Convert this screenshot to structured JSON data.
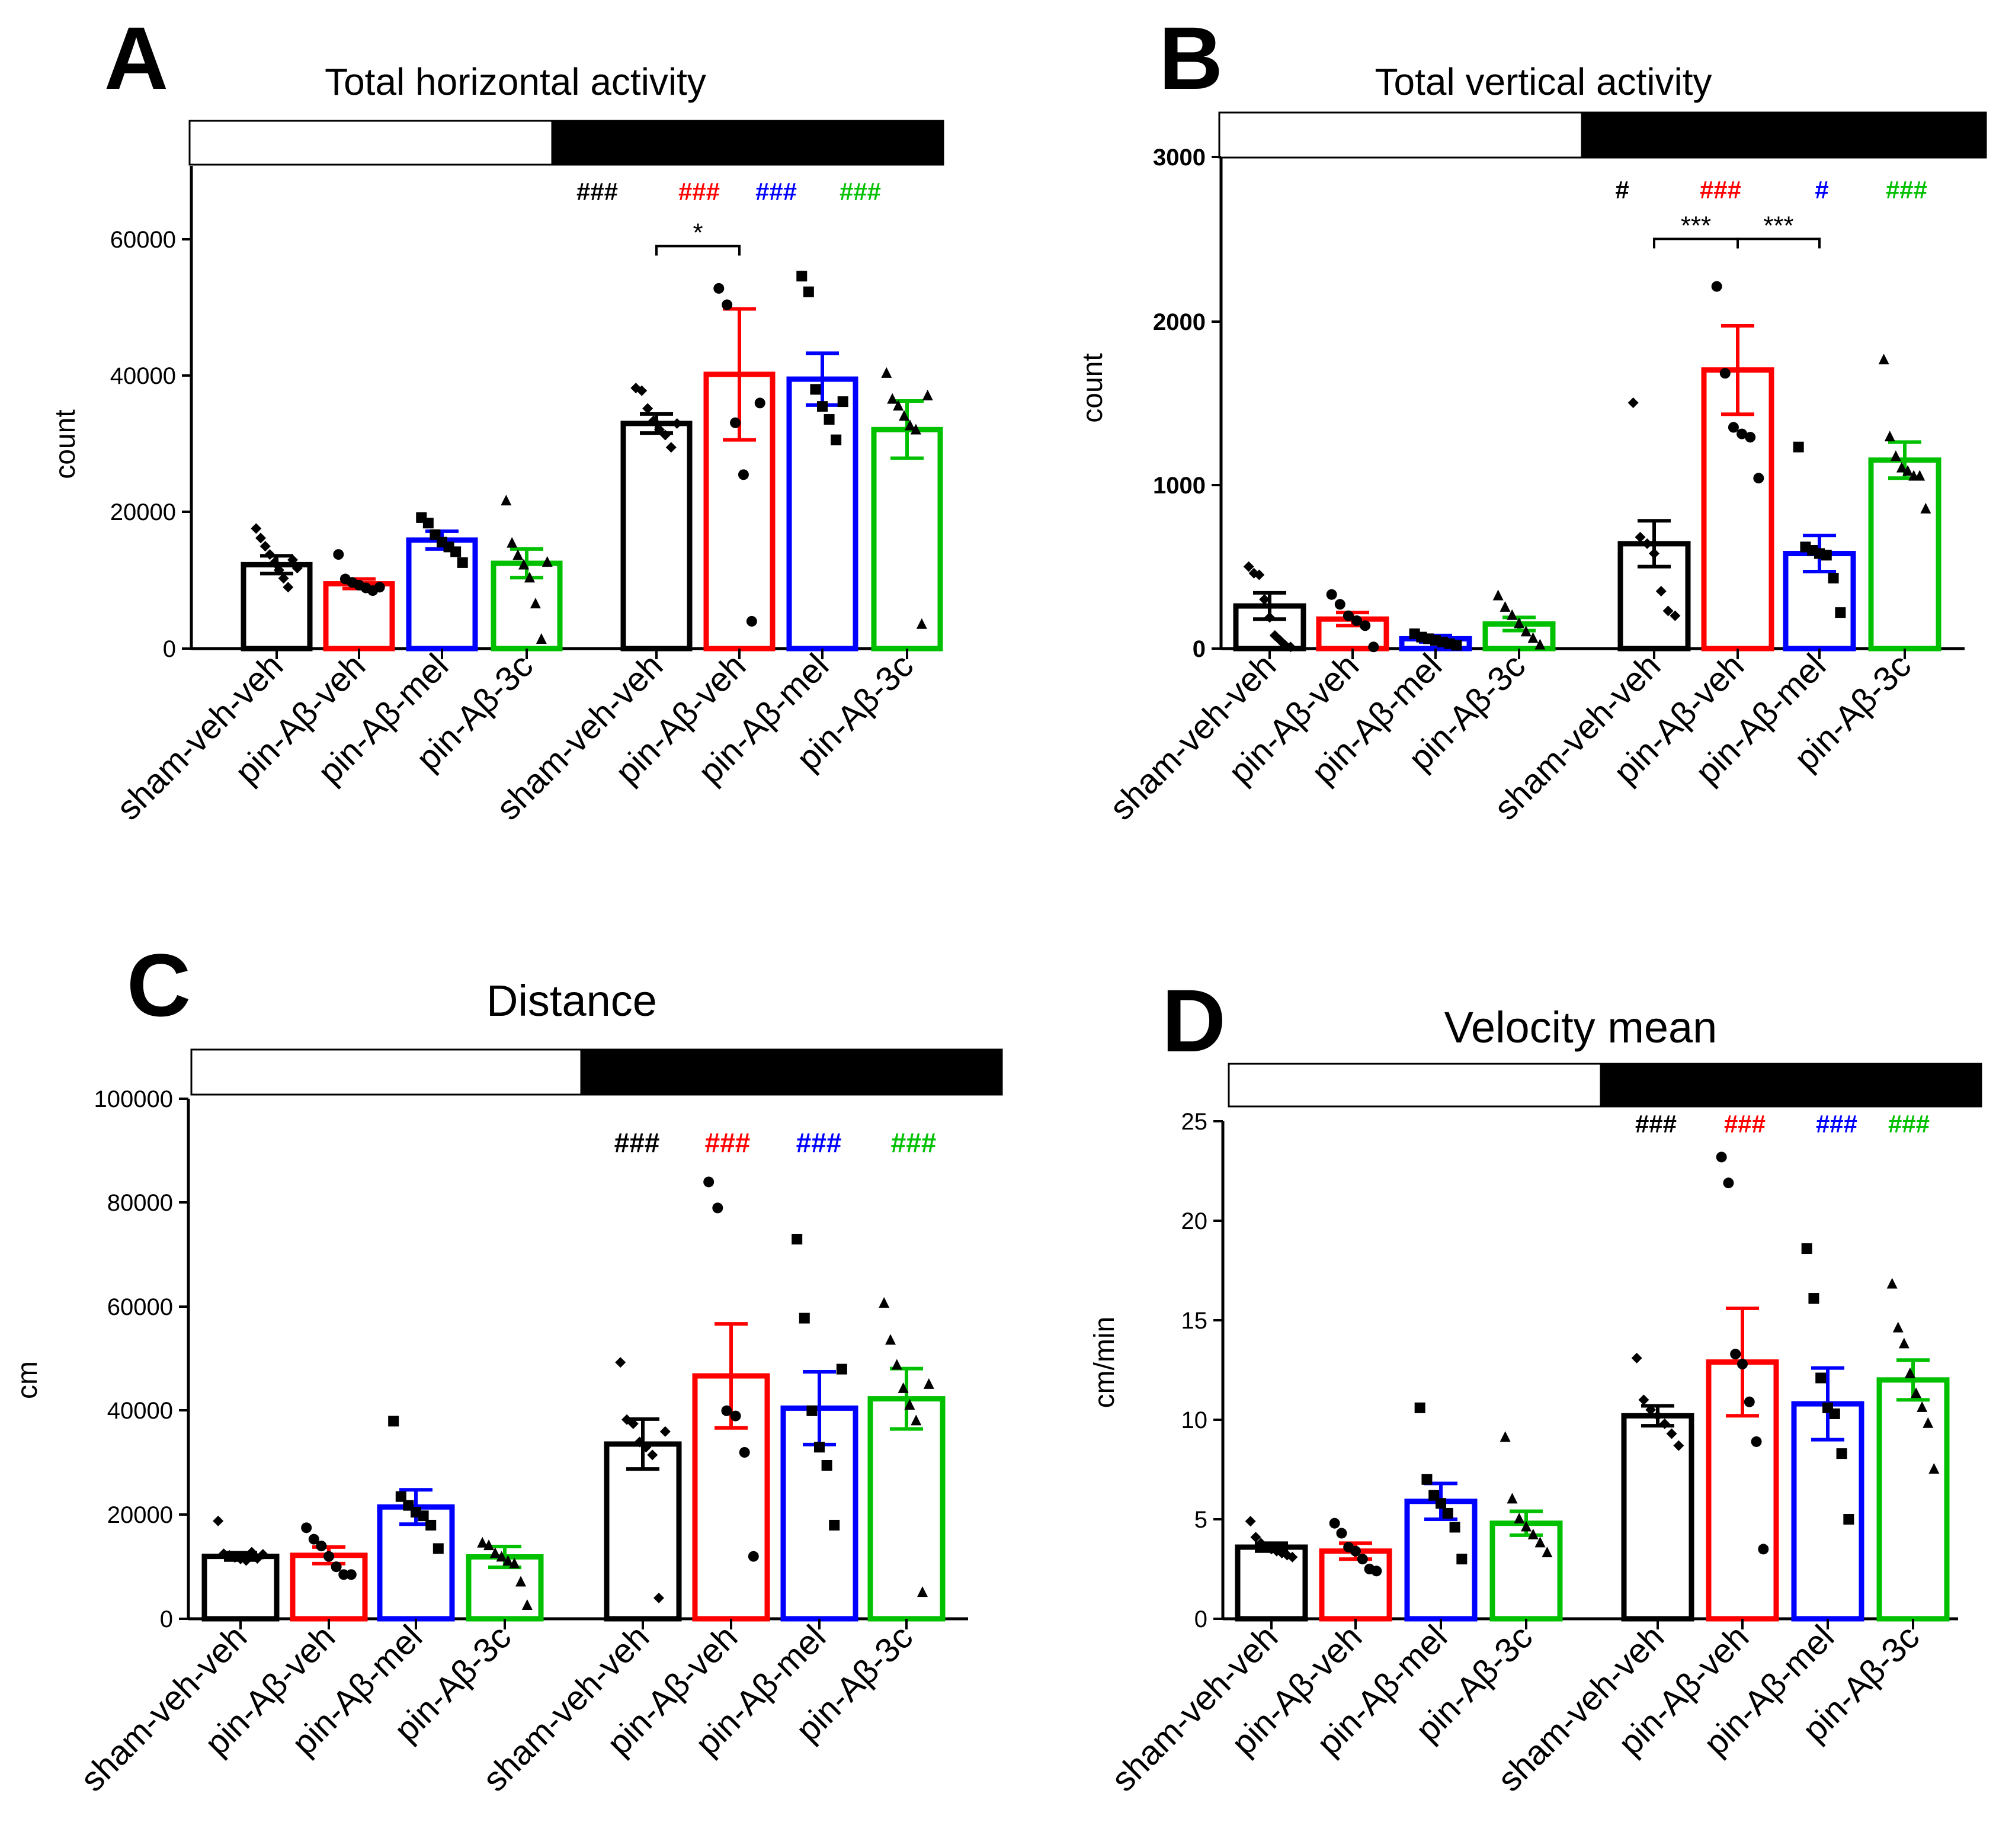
{
  "colors": {
    "black": "#000000",
    "red": "#ff0000",
    "blue": "#0000ff",
    "green": "#00c000"
  },
  "chart_data": [
    {
      "panel": "A",
      "type": "bar",
      "title": "Total horizontal activity",
      "ylabel": "count",
      "ylim": [
        0,
        70000
      ],
      "yticks": [
        0,
        20000,
        40000,
        60000
      ],
      "categories": [
        "sham-veh-veh",
        "pin-Aβ-veh",
        "pin-Aβ-mel",
        "pin-Aβ-3c",
        "sham-veh-veh",
        "pin-Aβ-veh",
        "pin-Aβ-mel",
        "pin-Aβ-3c"
      ],
      "colors": [
        "black",
        "red",
        "blue",
        "green",
        "black",
        "red",
        "blue",
        "green"
      ],
      "markers": [
        "diamond",
        "circle",
        "square",
        "triangle",
        "diamond",
        "circle",
        "square",
        "triangle"
      ],
      "values": [
        12300,
        9500,
        15900,
        12500,
        33000,
        40200,
        39500,
        32100
      ],
      "sem": [
        1300,
        700,
        1300,
        2100,
        1400,
        9600,
        3800,
        4200
      ],
      "points": [
        [
          17600,
          16200,
          15000,
          13800,
          12600,
          11500,
          10300,
          9000,
          13000,
          11800
        ],
        [
          13800,
          10200,
          9700,
          9300,
          8900,
          8500,
          9000
        ],
        [
          19200,
          18400,
          16700,
          15600,
          14900,
          14200,
          12600
        ],
        [
          21600,
          15400,
          13600,
          12200,
          10300,
          6500,
          1300,
          12600
        ],
        [
          38200,
          37800,
          35200,
          33400,
          32100,
          31300,
          29500,
          33000
        ],
        [
          52800,
          50400,
          33100,
          25500,
          4000,
          36000
        ],
        [
          54600,
          52300,
          38000,
          35500,
          33600,
          30600,
          36200
        ],
        [
          40300,
          36500,
          35500,
          34000,
          32600,
          32000,
          3500,
          37000
        ]
      ],
      "annotations": [
        {
          "text": "###",
          "color": "black",
          "bar": 4
        },
        {
          "text": "###",
          "color": "red",
          "bar": 5
        },
        {
          "text": "###",
          "color": "blue",
          "bar": 6
        },
        {
          "text": "###",
          "color": "green",
          "bar": 7
        }
      ],
      "brackets": [
        {
          "from": 4,
          "to": 5,
          "text": "*",
          "y": 59000
        }
      ],
      "light_dark_bar": true
    },
    {
      "panel": "B",
      "type": "bar",
      "title": "Total vertical activity",
      "ylabel": "count",
      "ylim": [
        0,
        3000
      ],
      "yticks": [
        0,
        1000,
        2000,
        3000
      ],
      "categories": [
        "sham-veh-veh",
        "pin-Aβ-veh",
        "pin-Aβ-mel",
        "pin-Aβ-3c",
        "sham-veh-veh",
        "pin-Aβ-veh",
        "pin-Aβ-mel",
        "pin-Aβ-3c"
      ],
      "colors": [
        "black",
        "red",
        "blue",
        "green",
        "black",
        "red",
        "blue",
        "green"
      ],
      "markers": [
        "diamond",
        "circle",
        "square",
        "triangle",
        "diamond",
        "circle",
        "square",
        "triangle"
      ],
      "values": [
        260,
        180,
        60,
        150,
        640,
        1700,
        580,
        1150
      ],
      "sem": [
        80,
        40,
        20,
        40,
        140,
        270,
        110,
        110
      ],
      "points": [
        [
          500,
          460,
          450,
          300,
          190,
          80,
          50,
          20,
          10
        ],
        [
          330,
          270,
          200,
          170,
          140,
          10
        ],
        [
          90,
          70,
          60,
          50,
          40,
          30,
          20
        ],
        [
          320,
          250,
          200,
          150,
          100,
          60,
          20
        ],
        [
          1500,
          680,
          640,
          580,
          350,
          230,
          200
        ],
        [
          2210,
          1680,
          1350,
          1310,
          1290,
          1040
        ],
        [
          1230,
          620,
          600,
          580,
          570,
          430,
          220
        ],
        [
          1760,
          1290,
          1170,
          1100,
          1080,
          1050,
          1050,
          850
        ]
      ],
      "annotations": [
        {
          "text": "#",
          "color": "black",
          "bar": 4
        },
        {
          "text": "###",
          "color": "red",
          "bar": 5
        },
        {
          "text": "#",
          "color": "blue",
          "bar": 6
        },
        {
          "text": "###",
          "color": "green",
          "bar": 7
        }
      ],
      "brackets": [
        {
          "from": 4,
          "to": 5,
          "text": "***",
          "y": 2500
        },
        {
          "from": 5,
          "to": 6,
          "text": "***",
          "y": 2500
        }
      ],
      "light_dark_bar": true
    },
    {
      "panel": "C",
      "type": "bar",
      "title": "Distance",
      "ylabel": "cm",
      "ylim": [
        0,
        100000
      ],
      "yticks": [
        0,
        20000,
        40000,
        60000,
        80000,
        100000
      ],
      "categories": [
        "sham-veh-veh",
        "pin-Aβ-veh",
        "pin-Aβ-mel",
        "pin-Aβ-3c",
        "sham-veh-veh",
        "pin-Aβ-veh",
        "pin-Aβ-mel",
        "pin-Aβ-3c"
      ],
      "colors": [
        "black",
        "red",
        "blue",
        "green",
        "black",
        "red",
        "blue",
        "green"
      ],
      "markers": [
        "diamond",
        "circle",
        "square",
        "triangle",
        "diamond",
        "circle",
        "square",
        "triangle"
      ],
      "values": [
        12000,
        12200,
        21500,
        11900,
        33600,
        46700,
        40500,
        42300
      ],
      "sem": [
        700,
        1600,
        3300,
        2000,
        4800,
        10000,
        7000,
        5800
      ],
      "points": [
        [
          18800,
          12500,
          12200,
          11800,
          11500,
          11200,
          12800,
          11600,
          12400
        ],
        [
          17500,
          15300,
          14000,
          12000,
          10000,
          8500,
          8500
        ],
        [
          38000,
          23500,
          21800,
          20500,
          19800,
          18000,
          13500
        ],
        [
          14500,
          14000,
          12500,
          11800,
          11000,
          10500,
          7000,
          2500
        ],
        [
          49300,
          38300,
          37500,
          34000,
          33000,
          31500,
          4000,
          36000
        ],
        [
          84000,
          79000,
          40000,
          39000,
          32000,
          12000
        ],
        [
          73000,
          57800,
          40000,
          33000,
          29500,
          18000,
          48000
        ],
        [
          60600,
          53500,
          48700,
          44200,
          41000,
          38000,
          5000,
          45000
        ]
      ],
      "annotations": [
        {
          "text": "###",
          "color": "black",
          "bar": 4
        },
        {
          "text": "###",
          "color": "red",
          "bar": 5
        },
        {
          "text": "###",
          "color": "blue",
          "bar": 6
        },
        {
          "text": "###",
          "color": "green",
          "bar": 7
        }
      ],
      "brackets": [],
      "light_dark_bar": true
    },
    {
      "panel": "D",
      "type": "bar",
      "title": "Velocity mean",
      "ylabel": "cm/min",
      "ylim": [
        0,
        25
      ],
      "yticks": [
        0,
        5,
        10,
        15,
        20,
        25
      ],
      "categories": [
        "sham-veh-veh",
        "pin-Aβ-veh",
        "pin-Aβ-mel",
        "pin-Aβ-3c",
        "sham-veh-veh",
        "pin-Aβ-veh",
        "pin-Aβ-mel",
        "pin-Aβ-3c"
      ],
      "colors": [
        "black",
        "red",
        "blue",
        "green",
        "black",
        "red",
        "blue",
        "green"
      ],
      "markers": [
        "diamond",
        "circle",
        "square",
        "triangle",
        "diamond",
        "circle",
        "square",
        "triangle"
      ],
      "values": [
        3.6,
        3.4,
        5.9,
        4.8,
        10.2,
        12.9,
        10.8,
        12.0
      ],
      "sem": [
        0.2,
        0.4,
        0.9,
        0.6,
        0.5,
        2.7,
        1.8,
        1.0
      ],
      "points": [
        [
          4.9,
          4.1,
          3.8,
          3.6,
          3.5,
          3.4,
          3.3,
          3.2,
          3.1
        ],
        [
          4.8,
          4.3,
          3.6,
          3.4,
          3.0,
          2.5,
          2.4
        ],
        [
          10.6,
          7.0,
          6.2,
          5.8,
          5.3,
          4.6,
          3.0
        ],
        [
          9.1,
          6.0,
          5.0,
          4.6,
          4.2,
          3.8,
          3.3
        ],
        [
          13.1,
          11.0,
          10.5,
          10.2,
          9.8,
          9.3,
          8.7
        ],
        [
          23.2,
          21.9,
          13.3,
          12.8,
          10.9,
          8.9,
          3.5
        ],
        [
          18.6,
          16.1,
          12.1,
          10.6,
          10.3,
          8.3,
          5.0
        ],
        [
          16.8,
          14.6,
          13.8,
          12.3,
          11.3,
          10.6,
          9.8,
          7.5
        ]
      ],
      "annotations": [
        {
          "text": "###",
          "color": "black",
          "bar": 4
        },
        {
          "text": "###",
          "color": "red",
          "bar": 5
        },
        {
          "text": "###",
          "color": "blue",
          "bar": 6
        },
        {
          "text": "###",
          "color": "green",
          "bar": 7
        }
      ],
      "brackets": [],
      "light_dark_bar": true
    }
  ]
}
